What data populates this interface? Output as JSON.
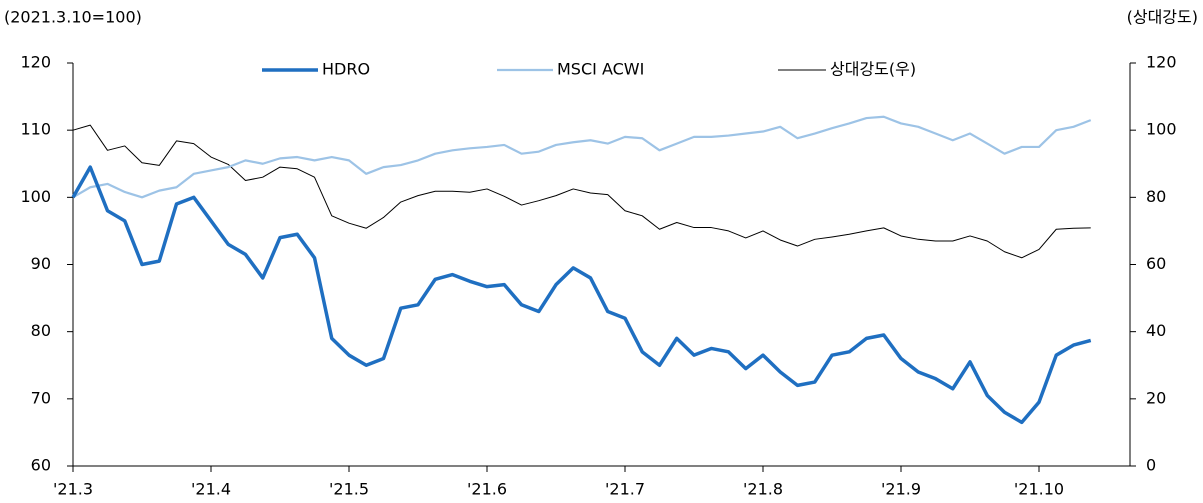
{
  "chart_data": {
    "type": "line",
    "ylabel": "(2021.3.10=100)",
    "y2label": "(상대강도)",
    "legend": "top",
    "categories": [
      "'21.3",
      null,
      null,
      null,
      null,
      null,
      null,
      null,
      "'21.4",
      null,
      null,
      null,
      null,
      null,
      null,
      null,
      "'21.5",
      null,
      null,
      null,
      null,
      null,
      null,
      null,
      "'21.6",
      null,
      null,
      null,
      null,
      null,
      null,
      null,
      "'21.7",
      null,
      null,
      null,
      null,
      null,
      null,
      null,
      "'21.8",
      null,
      null,
      null,
      null,
      null,
      null,
      null,
      "'21.9",
      null,
      null,
      null,
      null,
      null,
      null,
      null,
      "'21.10",
      null,
      null,
      null
    ],
    "ylim": [
      60,
      120
    ],
    "yticks": [
      60,
      70,
      80,
      90,
      100,
      110,
      120
    ],
    "y2lim": [
      0,
      120
    ],
    "y2ticks": [
      0,
      20,
      40,
      60,
      80,
      100,
      120
    ],
    "series": [
      {
        "name": "HDRO",
        "color": "#1f6fc1",
        "width": 3.5,
        "values": [
          100,
          104.5,
          98,
          96.5,
          90,
          90.5,
          99,
          100,
          96.5,
          93,
          91.5,
          88,
          94,
          94.5,
          91,
          79,
          76.5,
          75,
          76,
          83.5,
          84,
          87.8,
          88.5,
          87.5,
          86.7,
          87,
          84,
          83,
          87,
          89.5,
          88,
          83,
          82,
          77,
          75,
          79,
          76.5,
          77.5,
          77,
          74.5,
          76.5,
          74,
          72,
          72.5,
          76.5,
          77,
          79,
          79.5,
          76,
          74,
          73,
          71.5,
          75.5,
          70.5,
          68,
          66.5,
          69.5,
          76.5,
          78,
          78.7
        ]
      },
      {
        "name": "MSCI ACWI",
        "color": "#9dc3e6",
        "width": 2.2,
        "values": [
          100,
          101.5,
          102,
          100.8,
          100,
          101,
          101.5,
          103.5,
          104,
          104.5,
          105.5,
          105,
          105.8,
          106,
          105.5,
          106,
          105.5,
          103.5,
          104.5,
          104.8,
          105.5,
          106.5,
          107,
          107.3,
          107.5,
          107.8,
          106.5,
          106.8,
          107.8,
          108.2,
          108.5,
          108,
          109,
          108.8,
          107,
          108,
          109,
          109,
          109.2,
          109.5,
          109.8,
          110.5,
          108.8,
          109.5,
          110.3,
          111,
          111.8,
          112,
          111,
          110.5,
          109.5,
          108.5,
          109.5,
          108,
          106.5,
          107.5,
          107.5,
          110,
          110.5,
          111.5
        ]
      },
      {
        "name": "상대강도(우)",
        "color": "#000000",
        "width": 1,
        "axis": "y2",
        "values": [
          100,
          101.5,
          94,
          95.3,
          90.3,
          89.5,
          96.8,
          96,
          92,
          89.8,
          85,
          86,
          89,
          88.5,
          86,
          74.5,
          72.3,
          70.8,
          74,
          78.6,
          80.5,
          81.8,
          81.8,
          81.5,
          82.5,
          80.3,
          77.7,
          79,
          80.5,
          82.5,
          81.3,
          80.8,
          76,
          74.5,
          70.5,
          72.5,
          71,
          71,
          70,
          67.9,
          70,
          67.3,
          65.5,
          67.5,
          68.2,
          69,
          70,
          70.9,
          68.5,
          67.5,
          67,
          67,
          68.5,
          67,
          63.8,
          62,
          64.5,
          70.5,
          70.8,
          70.9
        ]
      }
    ]
  }
}
